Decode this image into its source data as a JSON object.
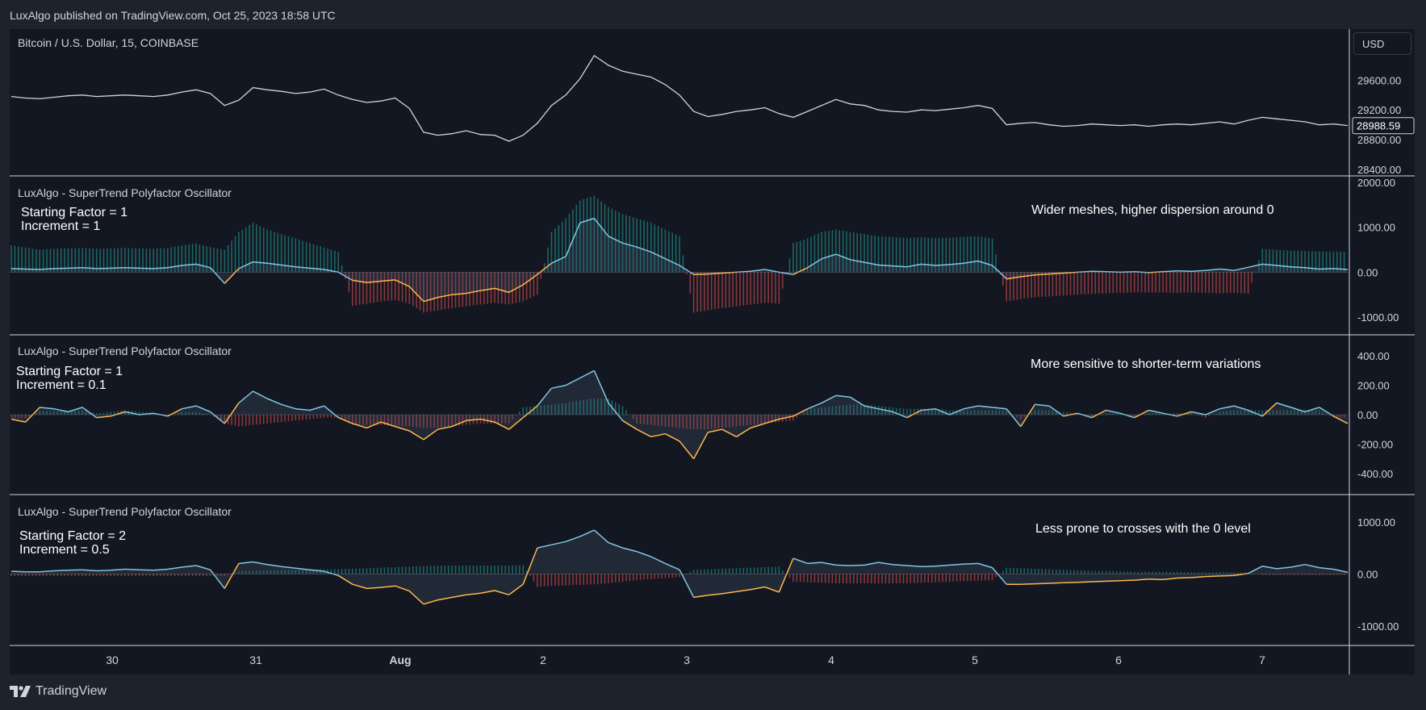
{
  "header": {
    "published": "LuxAlgo published on TradingView.com, Oct 25, 2023 18:58 UTC"
  },
  "footer": {
    "brand": "TradingView",
    "logo_icon": "tradingview-logo-icon"
  },
  "price_pane": {
    "title": "Bitcoin / U.S. Dollar, 15, COINBASE",
    "currency": "USD",
    "last_price": "28988.59"
  },
  "osc_panes": [
    {
      "title": "LuxAlgo - SuperTrend Polyfactor Oscillator",
      "param1": "Starting Factor = 1",
      "param2": "Increment = 1",
      "note": "Wider meshes, higher dispersion around 0"
    },
    {
      "title": "LuxAlgo - SuperTrend Polyfactor Oscillator",
      "param1": "Starting Factor = 1",
      "param2": "Increment = 0.1",
      "note": "More sensitive to shorter-term variations"
    },
    {
      "title": "LuxAlgo - SuperTrend Polyfactor Oscillator",
      "param1": "Starting Factor = 2",
      "param2": "Increment = 0.5",
      "note": "Less prone to crosses with the 0 level"
    }
  ],
  "colors": {
    "background": "#131722",
    "up": "#26a69a",
    "down": "#ef5350",
    "osc_line_up": "#7ec8e3",
    "osc_line_down": "#ffb74d",
    "price_line": "#d1d4dc"
  },
  "chart_data": [
    {
      "type": "line",
      "title": "Bitcoin / U.S. Dollar, 15, COINBASE",
      "x_ticks": [
        "30",
        "31",
        "Aug",
        "2",
        "3",
        "4",
        "5",
        "6",
        "7"
      ],
      "y_ticks": [
        "29600.00",
        "29200.00",
        "28800.00",
        "28400.00"
      ],
      "ylim": [
        28400,
        30200
      ],
      "last_value": 28988.59,
      "x": [
        0,
        1,
        2,
        3,
        4,
        5,
        6,
        7,
        8,
        9,
        10,
        11,
        12,
        13,
        14,
        15,
        16,
        17,
        18,
        19,
        20,
        21,
        22,
        23,
        24,
        25,
        26,
        27,
        28,
        29,
        30,
        31,
        32,
        33,
        34,
        35,
        36,
        37,
        38,
        39,
        40,
        41,
        42,
        43,
        44,
        45,
        46,
        47,
        48,
        49,
        50,
        51,
        52,
        53,
        54,
        55,
        56,
        57,
        58,
        59,
        60,
        61,
        62,
        63,
        64,
        65,
        66,
        67,
        68,
        69,
        70,
        71,
        72,
        73,
        74,
        75,
        76,
        77,
        78,
        79,
        80,
        81,
        82,
        83,
        84,
        85,
        86,
        87,
        88,
        89,
        90,
        91,
        92,
        93,
        94
      ],
      "y": [
        29380,
        29360,
        29350,
        29370,
        29390,
        29400,
        29380,
        29390,
        29400,
        29390,
        29380,
        29400,
        29440,
        29470,
        29420,
        29260,
        29330,
        29500,
        29470,
        29450,
        29420,
        29440,
        29480,
        29400,
        29340,
        29300,
        29320,
        29360,
        29220,
        28900,
        28860,
        28880,
        28920,
        28870,
        28860,
        28780,
        28860,
        29020,
        29260,
        29400,
        29620,
        29930,
        29800,
        29720,
        29680,
        29640,
        29540,
        29400,
        29180,
        29110,
        29140,
        29180,
        29200,
        29230,
        29150,
        29100,
        29180,
        29260,
        29340,
        29280,
        29260,
        29200,
        29180,
        29170,
        29200,
        29190,
        29210,
        29230,
        29260,
        29220,
        29000,
        29020,
        29030,
        29000,
        28980,
        28990,
        29010,
        29000,
        28990,
        29000,
        28980,
        29000,
        29010,
        29000,
        29020,
        29040,
        29010,
        29060,
        29100,
        29080,
        29060,
        29040,
        29000,
        29010,
        28990
      ]
    },
    {
      "type": "line",
      "title": "LuxAlgo - SuperTrend Polyfactor Oscillator",
      "y_ticks": [
        "2000.00",
        "1000.00",
        "0.00",
        "-1000.00"
      ],
      "ylim": [
        -1250,
        2000
      ],
      "x": [
        0,
        1,
        2,
        3,
        4,
        5,
        6,
        7,
        8,
        9,
        10,
        11,
        12,
        13,
        14,
        15,
        16,
        17,
        18,
        19,
        20,
        21,
        22,
        23,
        24,
        25,
        26,
        27,
        28,
        29,
        30,
        31,
        32,
        33,
        34,
        35,
        36,
        37,
        38,
        39,
        40,
        41,
        42,
        43,
        44,
        45,
        46,
        47,
        48,
        49,
        50,
        51,
        52,
        53,
        54,
        55,
        56,
        57,
        58,
        59,
        60,
        61,
        62,
        63,
        64,
        65,
        66,
        67,
        68,
        69,
        70,
        71,
        72,
        73,
        74,
        75,
        76,
        77,
        78,
        79,
        80,
        81,
        82,
        83,
        84,
        85,
        86,
        87,
        88,
        89,
        90,
        91,
        92,
        93,
        94
      ],
      "y": [
        80,
        70,
        60,
        80,
        90,
        100,
        80,
        90,
        100,
        90,
        80,
        100,
        150,
        180,
        100,
        -250,
        80,
        230,
        200,
        160,
        120,
        90,
        60,
        0,
        -180,
        -230,
        -200,
        -170,
        -320,
        -650,
        -560,
        -500,
        -470,
        -410,
        -360,
        -450,
        -280,
        -50,
        200,
        350,
        1100,
        1200,
        800,
        650,
        560,
        450,
        300,
        150,
        -50,
        -40,
        -20,
        0,
        20,
        60,
        0,
        -50,
        100,
        300,
        400,
        280,
        220,
        160,
        140,
        120,
        180,
        150,
        170,
        200,
        250,
        150,
        -150,
        -100,
        -60,
        -40,
        -20,
        0,
        20,
        10,
        0,
        10,
        -10,
        10,
        30,
        20,
        40,
        70,
        40,
        110,
        180,
        150,
        120,
        100,
        70,
        80,
        60
      ],
      "band": [
        600,
        550,
        500,
        520,
        530,
        540,
        520,
        530,
        540,
        530,
        520,
        540,
        600,
        640,
        560,
        500,
        900,
        1100,
        950,
        850,
        750,
        650,
        550,
        450,
        -750,
        -700,
        -650,
        -620,
        -700,
        -900,
        -850,
        -800,
        -760,
        -720,
        -680,
        -720,
        -650,
        -500,
        900,
        1200,
        1600,
        1700,
        1450,
        1300,
        1200,
        1100,
        950,
        800,
        -900,
        -850,
        -800,
        -760,
        -720,
        -680,
        -700,
        650,
        750,
        900,
        950,
        900,
        850,
        800,
        780,
        760,
        780,
        760,
        770,
        790,
        800,
        750,
        -650,
        -600,
        -560,
        -540,
        -520,
        -500,
        -480,
        -470,
        -460,
        -450,
        -450,
        -450,
        -460,
        -450,
        -460,
        -470,
        -460,
        -480,
        520,
        500,
        480,
        470,
        460,
        460,
        450
      ]
    },
    {
      "type": "line",
      "title": "LuxAlgo - SuperTrend Polyfactor Oscillator",
      "y_ticks": [
        "400.00",
        "200.00",
        "0.00",
        "-200.00",
        "-400.00"
      ],
      "ylim": [
        -500,
        500
      ],
      "x": [
        0,
        1,
        2,
        3,
        4,
        5,
        6,
        7,
        8,
        9,
        10,
        11,
        12,
        13,
        14,
        15,
        16,
        17,
        18,
        19,
        20,
        21,
        22,
        23,
        24,
        25,
        26,
        27,
        28,
        29,
        30,
        31,
        32,
        33,
        34,
        35,
        36,
        37,
        38,
        39,
        40,
        41,
        42,
        43,
        44,
        45,
        46,
        47,
        48,
        49,
        50,
        51,
        52,
        53,
        54,
        55,
        56,
        57,
        58,
        59,
        60,
        61,
        62,
        63,
        64,
        65,
        66,
        67,
        68,
        69,
        70,
        71,
        72,
        73,
        74,
        75,
        76,
        77,
        78,
        79,
        80,
        81,
        82,
        83,
        84,
        85,
        86,
        87,
        88,
        89,
        90,
        91,
        92,
        93,
        94
      ],
      "y": [
        -30,
        -50,
        50,
        40,
        20,
        50,
        -20,
        -10,
        20,
        0,
        10,
        -10,
        40,
        60,
        20,
        -60,
        80,
        160,
        110,
        70,
        40,
        30,
        60,
        -20,
        -60,
        -90,
        -50,
        -80,
        -110,
        -170,
        -100,
        -80,
        -40,
        -30,
        -50,
        -100,
        -20,
        60,
        180,
        200,
        250,
        300,
        80,
        -40,
        -100,
        -150,
        -130,
        -180,
        -300,
        -120,
        -100,
        -150,
        -90,
        -60,
        -30,
        -10,
        40,
        80,
        130,
        120,
        60,
        40,
        20,
        -20,
        30,
        40,
        0,
        40,
        60,
        50,
        40,
        -80,
        70,
        60,
        -10,
        10,
        -20,
        30,
        10,
        -20,
        30,
        10,
        -10,
        20,
        0,
        40,
        60,
        30,
        -10,
        80,
        50,
        20,
        50,
        -10,
        -60
      ],
      "band": [
        -20,
        -25,
        25,
        25,
        20,
        30,
        10,
        20,
        30,
        20,
        10,
        -10,
        20,
        20,
        0,
        -60,
        -80,
        -70,
        -60,
        -50,
        -40,
        -30,
        -20,
        -20,
        -70,
        -70,
        -70,
        -75,
        -80,
        -90,
        -90,
        -80,
        -70,
        -60,
        -60,
        -60,
        50,
        60,
        70,
        80,
        100,
        110,
        110,
        60,
        -60,
        -70,
        -80,
        -90,
        -100,
        -100,
        -90,
        -80,
        -70,
        -60,
        -50,
        -40,
        40,
        50,
        60,
        70,
        70,
        60,
        50,
        40,
        40,
        40,
        30,
        30,
        30,
        30,
        30,
        -30,
        30,
        30,
        20,
        10,
        -10,
        10,
        10,
        -10,
        10,
        10,
        10,
        10,
        -20,
        20,
        30,
        30,
        30,
        30,
        30,
        30,
        30,
        -20,
        -20
      ]
    },
    {
      "type": "line",
      "title": "LuxAlgo - SuperTrend Polyfactor Oscillator",
      "y_ticks": [
        "1000.00",
        "0.00",
        "-1000.00"
      ],
      "ylim": [
        -1250,
        1400
      ],
      "x": [
        0,
        1,
        2,
        3,
        4,
        5,
        6,
        7,
        8,
        9,
        10,
        11,
        12,
        13,
        14,
        15,
        16,
        17,
        18,
        19,
        20,
        21,
        22,
        23,
        24,
        25,
        26,
        27,
        28,
        29,
        30,
        31,
        32,
        33,
        34,
        35,
        36,
        37,
        38,
        39,
        40,
        41,
        42,
        43,
        44,
        45,
        46,
        47,
        48,
        49,
        50,
        51,
        52,
        53,
        54,
        55,
        56,
        57,
        58,
        59,
        60,
        61,
        62,
        63,
        64,
        65,
        66,
        67,
        68,
        69,
        70,
        71,
        72,
        73,
        74,
        75,
        76,
        77,
        78,
        79,
        80,
        81,
        82,
        83,
        84,
        85,
        86,
        87,
        88,
        89,
        90,
        91,
        92,
        93,
        94
      ],
      "y": [
        50,
        40,
        40,
        60,
        70,
        80,
        60,
        70,
        90,
        80,
        70,
        90,
        130,
        160,
        80,
        -280,
        200,
        230,
        180,
        140,
        110,
        80,
        50,
        -30,
        -200,
        -280,
        -260,
        -230,
        -330,
        -580,
        -500,
        -450,
        -400,
        -370,
        -320,
        -400,
        -200,
        500,
        560,
        620,
        720,
        840,
        600,
        500,
        430,
        330,
        200,
        80,
        -450,
        -410,
        -380,
        -340,
        -300,
        -250,
        -350,
        300,
        200,
        220,
        170,
        160,
        170,
        220,
        180,
        160,
        140,
        150,
        170,
        190,
        200,
        120,
        -200,
        -200,
        -190,
        -180,
        -170,
        -160,
        -150,
        -140,
        -130,
        -120,
        -100,
        -110,
        -80,
        -70,
        -50,
        -40,
        -30,
        10,
        150,
        100,
        130,
        180,
        120,
        90,
        30
      ],
      "band": [
        -40,
        -40,
        -40,
        -40,
        -40,
        -40,
        -40,
        -40,
        -40,
        -40,
        -40,
        -40,
        -40,
        -40,
        -40,
        -40,
        60,
        60,
        70,
        80,
        80,
        90,
        90,
        90,
        100,
        110,
        120,
        130,
        140,
        150,
        160,
        160,
        160,
        160,
        160,
        160,
        170,
        -250,
        -230,
        -220,
        -210,
        -200,
        -180,
        -150,
        -120,
        -100,
        -80,
        -60,
        80,
        90,
        100,
        110,
        120,
        130,
        140,
        -150,
        -160,
        -170,
        -180,
        -180,
        -180,
        -180,
        -180,
        -180,
        -170,
        -160,
        -150,
        -140,
        -130,
        -120,
        120,
        110,
        100,
        90,
        80,
        70,
        60,
        50,
        50,
        40,
        40,
        40,
        40,
        30,
        30,
        30,
        30,
        20,
        -20,
        -20,
        -20,
        -20,
        -20,
        -20,
        -20
      ]
    }
  ]
}
